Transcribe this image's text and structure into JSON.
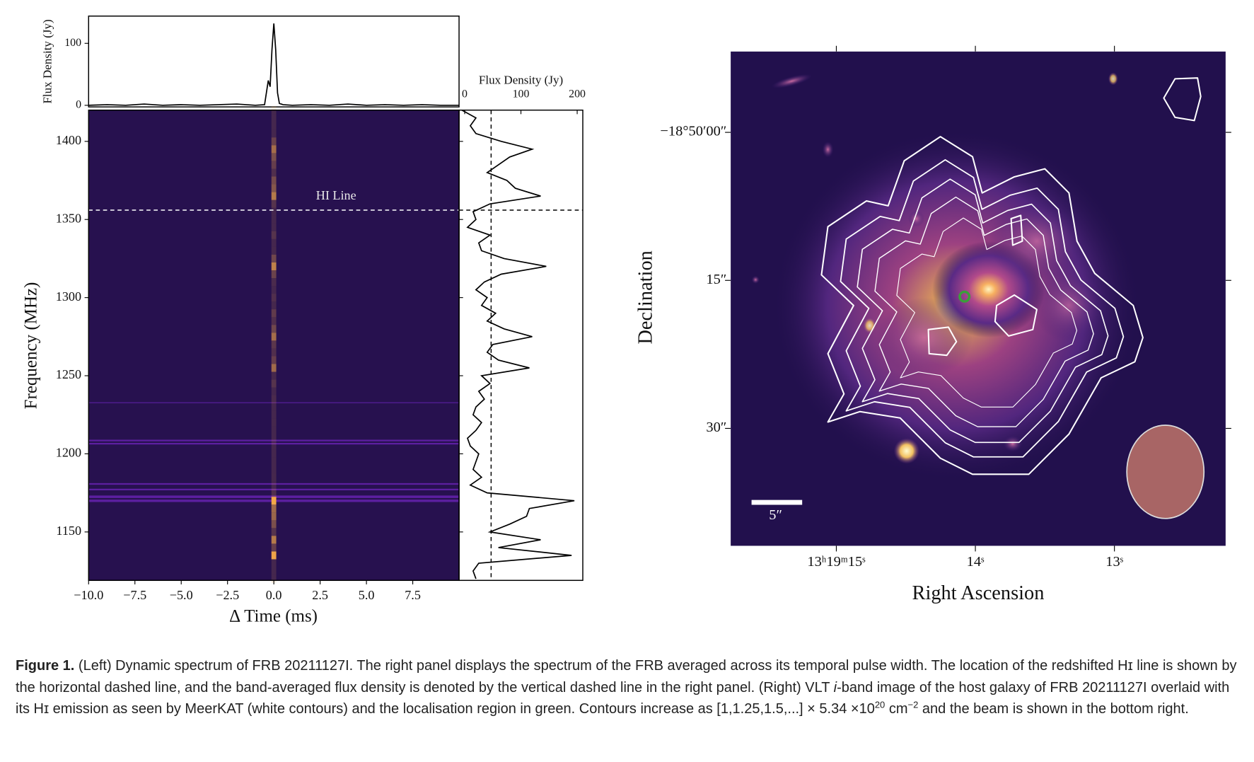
{
  "chart_data": [
    {
      "type": "line",
      "ylabel": "Flux Density (Jy)",
      "color": "#000000",
      "x": [
        -10,
        -9,
        -8,
        -7,
        -6,
        -5,
        -4,
        -3,
        -2,
        -1,
        -0.5,
        -0.3,
        -0.2,
        -0.1,
        0,
        0.1,
        0.2,
        0.3,
        0.5,
        1,
        2,
        3,
        4,
        5,
        6,
        7,
        8,
        9,
        10
      ],
      "values": [
        0,
        1,
        0,
        2,
        0,
        1,
        0,
        1,
        2,
        0,
        1,
        40,
        30,
        90,
        132,
        90,
        20,
        3,
        1,
        0,
        1,
        0,
        2,
        0,
        1,
        0,
        1,
        0,
        0
      ],
      "xlim": [
        -10,
        10
      ],
      "ylim": [
        -2.6,
        144
      ],
      "yticks": [
        0,
        100
      ]
    },
    {
      "type": "heatmap",
      "xlabel": "Δ Time (ms)",
      "ylabel": "Frequency (MHz)",
      "xlim": [
        -10,
        10
      ],
      "xticks": [
        {
          "value": -10,
          "label": "−10.0"
        },
        {
          "value": -7.5,
          "label": "−7.5"
        },
        {
          "value": -5,
          "label": "−5.0"
        },
        {
          "value": -2.5,
          "label": "−2.5"
        },
        {
          "value": 0,
          "label": "0.0"
        },
        {
          "value": 2.5,
          "label": "2.5"
        },
        {
          "value": 5,
          "label": "5.0"
        },
        {
          "value": 7.5,
          "label": "7.5"
        }
      ],
      "ylim": [
        1119,
        1420
      ],
      "yticks": [
        1150,
        1200,
        1250,
        1300,
        1350,
        1400
      ],
      "hline": {
        "value": 1356,
        "label": "HI Line"
      }
    },
    {
      "type": "line",
      "orientation": "horizontal",
      "xlabel": "Flux Density (Jy)",
      "color": "#000000",
      "y": [
        1120,
        1125,
        1130,
        1135,
        1140,
        1145,
        1150,
        1155,
        1160,
        1165,
        1170,
        1175,
        1180,
        1185,
        1190,
        1195,
        1200,
        1205,
        1210,
        1215,
        1220,
        1225,
        1230,
        1235,
        1240,
        1245,
        1250,
        1255,
        1260,
        1265,
        1270,
        1275,
        1280,
        1285,
        1290,
        1295,
        1300,
        1305,
        1310,
        1315,
        1320,
        1325,
        1330,
        1335,
        1340,
        1345,
        1350,
        1355,
        1360,
        1365,
        1370,
        1375,
        1380,
        1385,
        1390,
        1395,
        1400,
        1405,
        1410,
        1415,
        1420
      ],
      "values": [
        20,
        15,
        25,
        190,
        60,
        135,
        45,
        80,
        110,
        115,
        195,
        40,
        10,
        30,
        15,
        20,
        25,
        10,
        5,
        20,
        30,
        15,
        20,
        35,
        25,
        45,
        30,
        115,
        60,
        40,
        50,
        120,
        70,
        40,
        55,
        30,
        40,
        20,
        35,
        65,
        145,
        70,
        30,
        25,
        45,
        5,
        20,
        15,
        45,
        135,
        90,
        75,
        40,
        60,
        80,
        120,
        65,
        20,
        10,
        20,
        -5
      ],
      "xlim": [
        -10,
        210
      ],
      "xticks": [
        0,
        100,
        200
      ],
      "ylim": [
        1119,
        1420
      ],
      "yticks": [
        1150,
        1200,
        1250,
        1300,
        1350,
        1400
      ],
      "vline": 47,
      "hline": 1356
    },
    {
      "type": "image",
      "xlabel": "Right Ascension",
      "ylabel": "Declination",
      "xlim": [
        15.76,
        12.2
      ],
      "xticks": [
        {
          "value": 15,
          "label": "13ʰ19ᵐ15ˢ"
        },
        {
          "value": 14,
          "label": "14ˢ"
        },
        {
          "value": 13,
          "label": "13ˢ"
        }
      ],
      "ylim": [
        41.9,
        -8.2
      ],
      "yticks": [
        {
          "value": 0,
          "label": "−18°50′00″"
        },
        {
          "value": 15,
          "label": "15″"
        },
        {
          "value": 30,
          "label": "30″"
        }
      ],
      "scale_bar_label": "5″"
    }
  ],
  "caption": {
    "label": "Figure 1.",
    "text": [
      "(Left) Dynamic spectrum of FRB 20211127I. The right panel displays the spectrum of the FRB averaged across its temporal pulse width. The location of the redshifted Hɪ line is shown by the horizontal dashed line, and the band-averaged flux density is denoted by the vertical dashed line in the right panel. (Right) VLT ",
      "i",
      "-band image of the host galaxy of FRB 20211127I overlaid with its Hɪ emission as seen by MeerKAT (white contours) and the localisation region in green. Contours increase as [1,1.25,1.5,...] × 5.34 ×10",
      "20",
      " cm",
      "−2",
      " and the beam is shown in the bottom right."
    ]
  }
}
